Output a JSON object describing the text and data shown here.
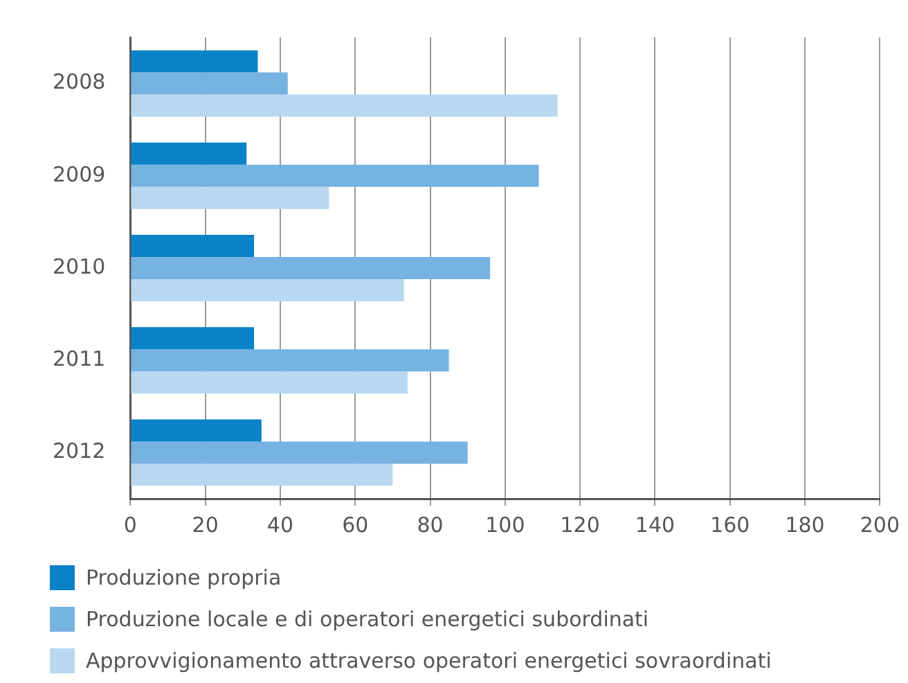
{
  "chart_data": {
    "type": "bar",
    "orientation": "horizontal",
    "categories": [
      "2008",
      "2009",
      "2010",
      "2011",
      "2012"
    ],
    "series": [
      {
        "name": "Produzione propria",
        "color": "#0a82c8",
        "values": [
          34,
          31,
          33,
          33,
          35
        ]
      },
      {
        "name": "Produzione locale e di operatori energetici subordinati",
        "color": "#77b3e1",
        "values": [
          42,
          109,
          96,
          85,
          90
        ]
      },
      {
        "name": "Approvvigionamento attraverso operatori energetici sovraordinati",
        "color": "#b8d8f0",
        "values": [
          114,
          53,
          73,
          74,
          70
        ]
      }
    ],
    "xlim": [
      0,
      200
    ],
    "xticks": [
      0,
      20,
      40,
      60,
      80,
      100,
      120,
      140,
      160,
      180,
      200
    ],
    "grid": "x",
    "legend": "bottom left"
  }
}
